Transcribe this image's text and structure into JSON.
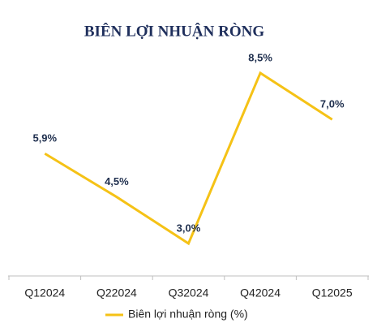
{
  "chart_data": {
    "type": "line",
    "title": "BIÊN LỢI NHUẬN RÒNG",
    "categories": [
      "Q12024",
      "Q22024",
      "Q32024",
      "Q42024",
      "Q12025"
    ],
    "series": [
      {
        "name": "Biên lợi nhuận ròng (%)",
        "color": "#f5c216",
        "values": [
          5.9,
          4.5,
          3.0,
          8.5,
          7.0
        ],
        "value_labels": [
          "5,9%",
          "4,5%",
          "3,0%",
          "8,5%",
          "7,0%"
        ]
      }
    ]
  }
}
